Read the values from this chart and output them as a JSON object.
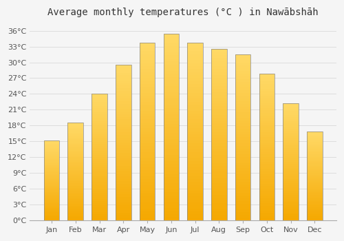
{
  "title": "Average monthly temperatures (°C ) in Nawābshāh",
  "months": [
    "Jan",
    "Feb",
    "Mar",
    "Apr",
    "May",
    "Jun",
    "Jul",
    "Aug",
    "Sep",
    "Oct",
    "Nov",
    "Dec"
  ],
  "values": [
    15.2,
    18.5,
    24.1,
    29.5,
    33.8,
    35.5,
    33.8,
    32.5,
    31.5,
    27.8,
    22.2,
    16.8
  ],
  "bar_color_bottom": "#F5A800",
  "bar_color_top": "#FFD966",
  "bar_edge_color": "#888888",
  "yticks": [
    0,
    3,
    6,
    9,
    12,
    15,
    18,
    21,
    24,
    27,
    30,
    33,
    36
  ],
  "ylim": [
    0,
    37.5
  ],
  "background_color": "#f5f5f5",
  "plot_bg_color": "#f5f5f5",
  "grid_color": "#dddddd",
  "title_fontsize": 10,
  "tick_fontsize": 8,
  "bar_width": 0.65
}
